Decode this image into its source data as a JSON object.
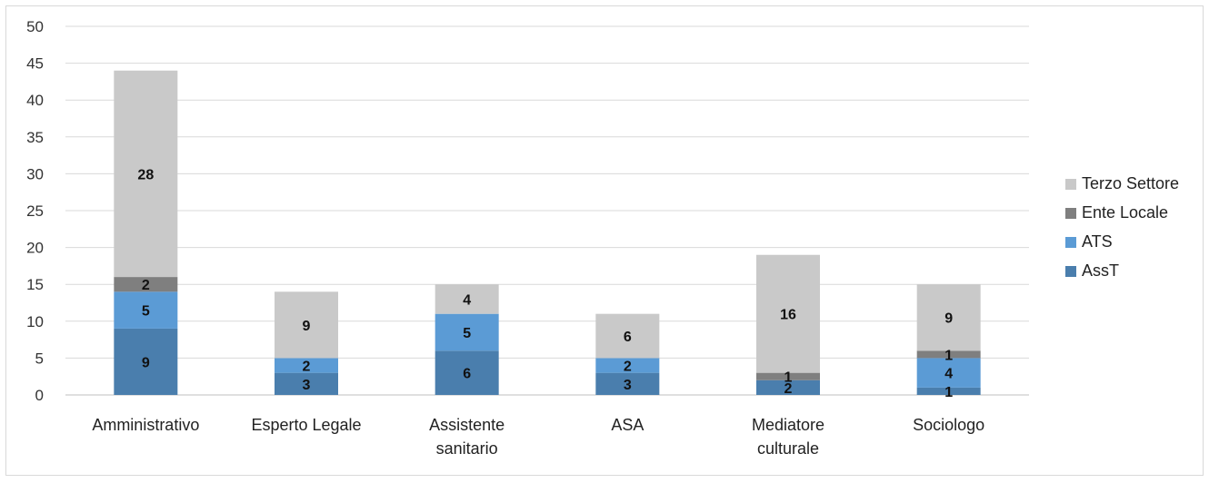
{
  "chart_data": {
    "type": "bar",
    "stacked": true,
    "categories": [
      [
        "Amministrativo"
      ],
      [
        "Esperto Legale"
      ],
      [
        "Assistente",
        "sanitario"
      ],
      [
        "ASA"
      ],
      [
        "Mediatore",
        "culturale"
      ],
      [
        "Sociologo"
      ]
    ],
    "series": [
      {
        "name": "AssT",
        "values": [
          9,
          3,
          6,
          3,
          2,
          1
        ],
        "color": "#4a7ead"
      },
      {
        "name": "ATS",
        "values": [
          5,
          2,
          5,
          2,
          0,
          4
        ],
        "color": "#5b9bd5"
      },
      {
        "name": "Ente Locale",
        "values": [
          2,
          0,
          0,
          0,
          1,
          1
        ],
        "color": "#7f7f7f"
      },
      {
        "name": "Terzo Settore",
        "values": [
          28,
          9,
          4,
          6,
          16,
          9
        ],
        "color": "#c9c9c9"
      }
    ],
    "ylim": [
      0,
      50
    ],
    "yticks": [
      0,
      5,
      10,
      15,
      20,
      25,
      30,
      35,
      40,
      45,
      50
    ],
    "grid": true,
    "legend": "right"
  }
}
